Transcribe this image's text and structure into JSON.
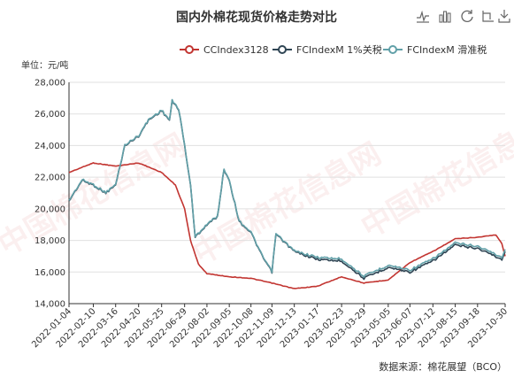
{
  "chart_data": {
    "type": "line",
    "title": "国内外棉花现货价格走势对比",
    "yunit": "单位：元/吨",
    "ylim": [
      14000,
      28000
    ],
    "yticks": [
      14000,
      16000,
      18000,
      20000,
      22000,
      24000,
      26000,
      28000
    ],
    "x_labels": [
      "2022-01-04",
      "2022-02-10",
      "2022-03-16",
      "2022-04-20",
      "2022-05-25",
      "2022-06-29",
      "2022-08-02",
      "2022-09-05",
      "2022-10-08",
      "2022-11-09",
      "2022-12-13",
      "2023-01-17",
      "2023-02-23",
      "2023-03-29",
      "2023-05-05",
      "2023-06-07",
      "2023-07-12",
      "2023-08-15",
      "2023-09-18",
      "2023-10-30"
    ],
    "grid": "horizontal",
    "legend_position": "top-right",
    "source": "数据来源：棉花展望（BCO）",
    "watermark": "中国棉花信息网",
    "series": [
      {
        "name": "CCIndex3128",
        "color": "#c23531",
        "values": [
          [
            "2022-01-04",
            22300
          ],
          [
            "2022-02-10",
            22900
          ],
          [
            "2022-03-16",
            22700
          ],
          [
            "2022-04-20",
            22900
          ],
          [
            "2022-05-25",
            22300
          ],
          [
            "2022-06-15",
            21500
          ],
          [
            "2022-06-29",
            20000
          ],
          [
            "2022-07-08",
            18000
          ],
          [
            "2022-07-20",
            16500
          ],
          [
            "2022-08-02",
            15900
          ],
          [
            "2022-09-05",
            15700
          ],
          [
            "2022-10-08",
            15600
          ],
          [
            "2022-11-09",
            15300
          ],
          [
            "2022-12-13",
            14950
          ],
          [
            "2023-01-17",
            15100
          ],
          [
            "2023-02-23",
            15700
          ],
          [
            "2023-03-29",
            15300
          ],
          [
            "2023-05-05",
            15500
          ],
          [
            "2023-06-07",
            16600
          ],
          [
            "2023-07-12",
            17300
          ],
          [
            "2023-08-15",
            18100
          ],
          [
            "2023-09-18",
            18200
          ],
          [
            "2023-10-16",
            18350
          ],
          [
            "2023-10-25",
            17800
          ],
          [
            "2023-10-30",
            17000
          ]
        ]
      },
      {
        "name": "FCIndexM 1%关税",
        "color": "#2f4554",
        "values": [
          [
            "2022-01-04",
            20500
          ],
          [
            "2022-01-24",
            21800
          ],
          [
            "2022-02-10",
            21500
          ],
          [
            "2022-03-01",
            21000
          ],
          [
            "2022-03-16",
            21500
          ],
          [
            "2022-03-30",
            24000
          ],
          [
            "2022-04-20",
            24600
          ],
          [
            "2022-05-05",
            25600
          ],
          [
            "2022-05-25",
            26200
          ],
          [
            "2022-06-06",
            25600
          ],
          [
            "2022-06-10",
            26800
          ],
          [
            "2022-06-20",
            26300
          ],
          [
            "2022-06-29",
            24000
          ],
          [
            "2022-07-08",
            21500
          ],
          [
            "2022-07-15",
            18200
          ],
          [
            "2022-08-02",
            19000
          ],
          [
            "2022-08-18",
            19500
          ],
          [
            "2022-08-28",
            22500
          ],
          [
            "2022-09-05",
            21800
          ],
          [
            "2022-09-20",
            19200
          ],
          [
            "2022-10-08",
            18500
          ],
          [
            "2022-10-25",
            17000
          ],
          [
            "2022-11-09",
            16000
          ],
          [
            "2022-11-15",
            18400
          ],
          [
            "2022-12-13",
            17300
          ],
          [
            "2023-01-17",
            16800
          ],
          [
            "2023-02-23",
            16700
          ],
          [
            "2023-03-29",
            15600
          ],
          [
            "2023-05-05",
            16300
          ],
          [
            "2023-06-07",
            16000
          ],
          [
            "2023-07-12",
            16700
          ],
          [
            "2023-08-15",
            17700
          ],
          [
            "2023-09-18",
            17500
          ],
          [
            "2023-10-10",
            17100
          ],
          [
            "2023-10-25",
            16800
          ],
          [
            "2023-10-30",
            17300
          ]
        ]
      },
      {
        "name": "FCIndexM 滑准税",
        "color": "#61a0a8",
        "values": [
          [
            "2022-01-04",
            20500
          ],
          [
            "2022-01-24",
            21800
          ],
          [
            "2022-02-10",
            21500
          ],
          [
            "2022-03-01",
            21000
          ],
          [
            "2022-03-16",
            21500
          ],
          [
            "2022-03-30",
            24000
          ],
          [
            "2022-04-20",
            24600
          ],
          [
            "2022-05-05",
            25600
          ],
          [
            "2022-05-25",
            26200
          ],
          [
            "2022-06-06",
            25600
          ],
          [
            "2022-06-10",
            26800
          ],
          [
            "2022-06-20",
            26300
          ],
          [
            "2022-06-29",
            24000
          ],
          [
            "2022-07-08",
            21500
          ],
          [
            "2022-07-15",
            18200
          ],
          [
            "2022-08-02",
            19000
          ],
          [
            "2022-08-18",
            19500
          ],
          [
            "2022-08-28",
            22500
          ],
          [
            "2022-09-05",
            21800
          ],
          [
            "2022-09-20",
            19200
          ],
          [
            "2022-10-08",
            18500
          ],
          [
            "2022-10-25",
            17000
          ],
          [
            "2022-11-09",
            16000
          ],
          [
            "2022-11-15",
            18400
          ],
          [
            "2022-12-13",
            17300
          ],
          [
            "2023-01-17",
            16900
          ],
          [
            "2023-02-23",
            16800
          ],
          [
            "2023-03-29",
            15700
          ],
          [
            "2023-05-05",
            16400
          ],
          [
            "2023-06-07",
            16100
          ],
          [
            "2023-07-12",
            16800
          ],
          [
            "2023-08-15",
            17800
          ],
          [
            "2023-09-18",
            17600
          ],
          [
            "2023-10-10",
            17200
          ],
          [
            "2023-10-25",
            16900
          ],
          [
            "2023-10-30",
            17400
          ]
        ]
      }
    ]
  },
  "toolbar": {
    "icons": [
      "data-view-icon",
      "bar-chart-icon",
      "refresh-icon",
      "restore-icon",
      "save-image-icon"
    ]
  }
}
